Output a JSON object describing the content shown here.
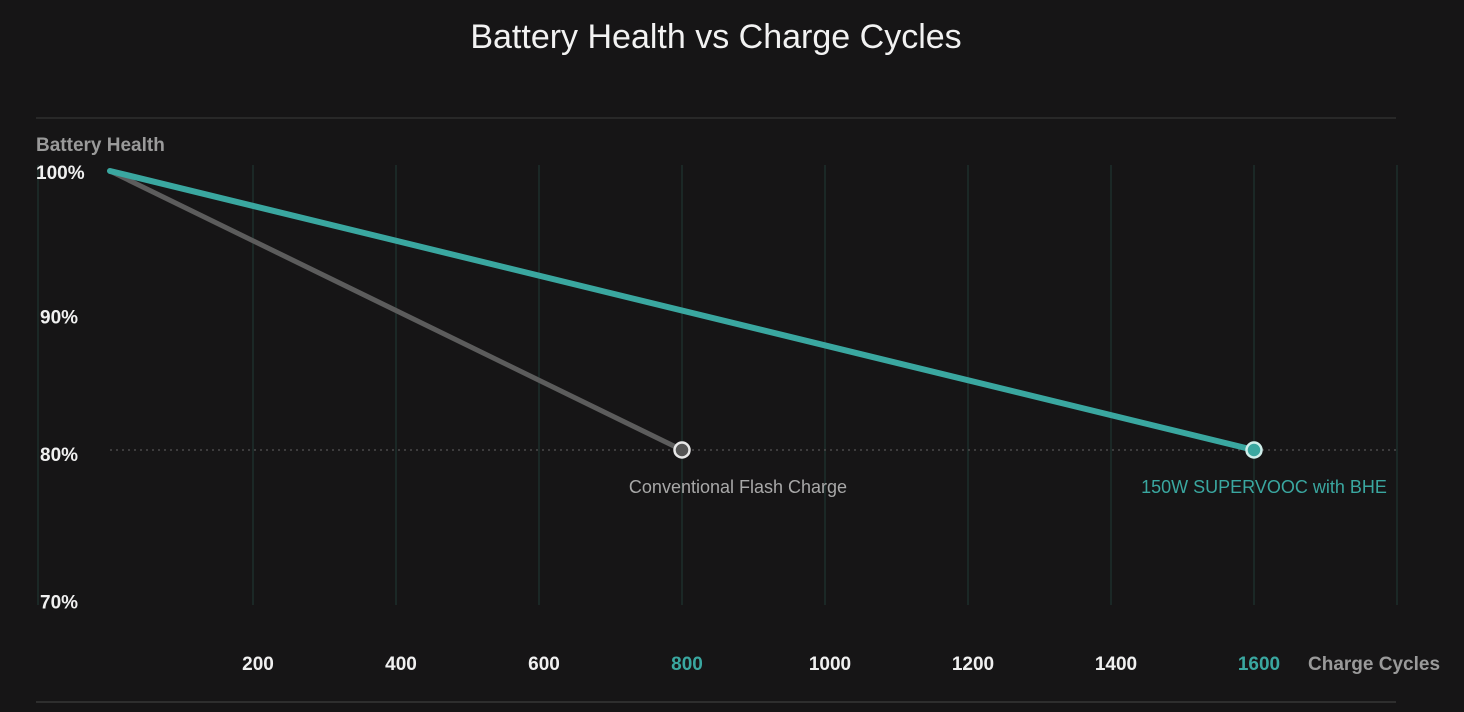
{
  "chart_data": {
    "type": "line",
    "title": "Battery Health vs Charge Cycles",
    "xlabel": "Charge Cycles",
    "ylabel": "Battery Health",
    "xlim": [
      0,
      2000
    ],
    "ylim": [
      70,
      100
    ],
    "x_ticks": [
      200,
      400,
      600,
      800,
      1000,
      1200,
      1400,
      1600
    ],
    "x_tick_labels": [
      "200",
      "400",
      "600",
      "800",
      "1000",
      "1200",
      "1400",
      "1600"
    ],
    "highlighted_x_ticks": [
      "800",
      "1600"
    ],
    "y_ticks": [
      100,
      90,
      80,
      70
    ],
    "y_tick_labels": [
      "100%",
      "90%",
      "80%",
      "70%"
    ],
    "reference_line": {
      "y": 80,
      "style": "dotted"
    },
    "grid": "vertical",
    "series": [
      {
        "name": "Conventional Flash Charge",
        "color": "#5c5c5c",
        "label_color": "#a8a8a8",
        "x": [
          0,
          800
        ],
        "y": [
          100,
          80
        ]
      },
      {
        "name": "150W SUPERVOOC with BHE",
        "color": "#3aa7a0",
        "label_color": "#3aa7a0",
        "x": [
          0,
          1600
        ],
        "y": [
          100,
          80
        ]
      }
    ]
  }
}
